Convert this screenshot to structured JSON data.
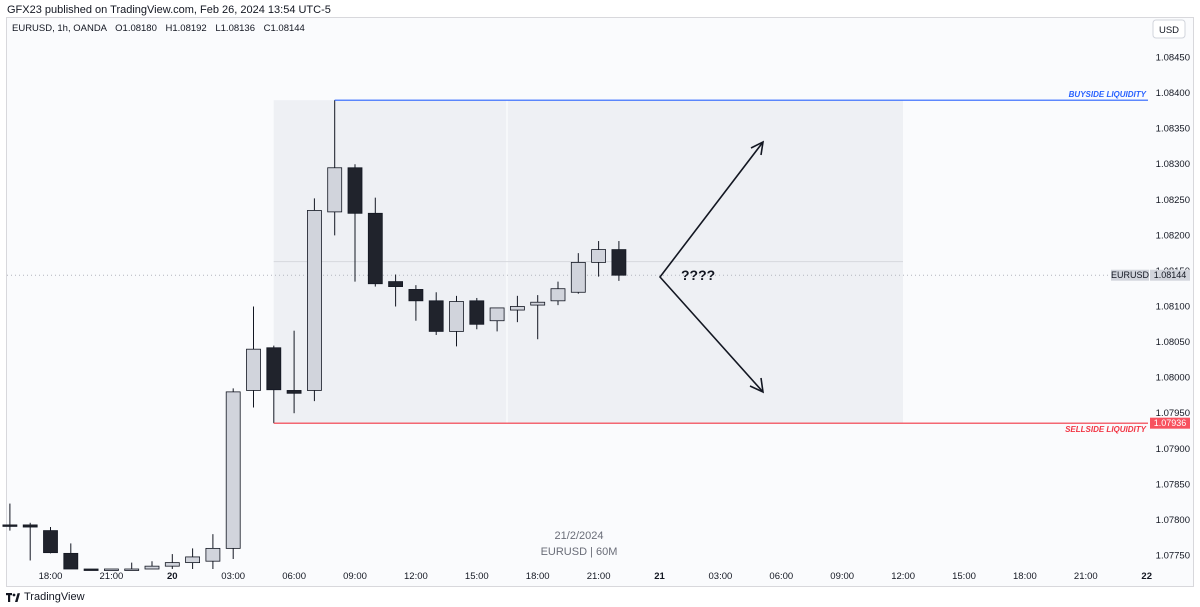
{
  "header": {
    "published_text": "GFX23 published on TradingView.com, Feb 26, 2024 13:54 UTC-5"
  },
  "footer": {
    "brand": "TradingView",
    "logo_icon": "tradingview-logo-icon"
  },
  "colors": {
    "bull_body": "#d1d4dc",
    "bear_body": "#20232c",
    "wick": "#131722",
    "buyside_line": "#2962ff",
    "sellside_line": "#f23645",
    "zone_fill": "#eef0f4",
    "sell_label_bg": "#f7525f"
  },
  "chart_data": {
    "type": "candlestick",
    "legend": {
      "symbol": "EURUSD, 1h, OANDA",
      "open": "O1.08180",
      "high": "H1.08192",
      "low": "L1.08136",
      "close": "C1.08144"
    },
    "currency": "USD",
    "ylim": [
      1.07705,
      1.08495
    ],
    "y_ticks": [
      "1.08450",
      "1.08400",
      "1.08350",
      "1.08300",
      "1.08250",
      "1.08200",
      "1.08150",
      "1.08100",
      "1.08050",
      "1.08000",
      "1.07950",
      "1.07900",
      "1.07850",
      "1.07800",
      "1.07750"
    ],
    "x_ticks": [
      "18:00",
      "21:00",
      "20",
      "03:00",
      "06:00",
      "09:00",
      "12:00",
      "15:00",
      "18:00",
      "21:00",
      "21",
      "03:00",
      "06:00",
      "09:00",
      "12:00",
      "15:00",
      "18:00",
      "21:00",
      "22"
    ],
    "bold_x_ticks": [
      "20",
      "21",
      "22"
    ],
    "watermark": {
      "date": "21/2/2024",
      "symbol": "EURUSD | 60M"
    },
    "candles": [
      {
        "o": 1.07793,
        "h": 1.07823,
        "l": 1.07785,
        "c": 1.07792
      },
      {
        "o": 1.07793,
        "h": 1.07796,
        "l": 1.07743,
        "c": 1.0779
      },
      {
        "o": 1.07785,
        "h": 1.0779,
        "l": 1.07753,
        "c": 1.07754
      },
      {
        "o": 1.07753,
        "h": 1.07767,
        "l": 1.077,
        "c": 1.0772
      },
      {
        "o": 1.0772,
        "h": 1.07726,
        "l": 1.07705,
        "c": 1.07712
      },
      {
        "o": 1.07712,
        "h": 1.0773,
        "l": 1.07705,
        "c": 1.0772
      },
      {
        "o": 1.0772,
        "h": 1.0774,
        "l": 1.07705,
        "c": 1.0773
      },
      {
        "o": 1.0773,
        "h": 1.07742,
        "l": 1.07705,
        "c": 1.07735
      },
      {
        "o": 1.07735,
        "h": 1.07752,
        "l": 1.07715,
        "c": 1.0774
      },
      {
        "o": 1.0774,
        "h": 1.0776,
        "l": 1.0773,
        "c": 1.07748
      },
      {
        "o": 1.07742,
        "h": 1.0778,
        "l": 1.0773,
        "c": 1.0776
      },
      {
        "o": 1.0776,
        "h": 1.07985,
        "l": 1.07745,
        "c": 1.0798
      },
      {
        "o": 1.07982,
        "h": 1.081,
        "l": 1.07958,
        "c": 1.0804
      },
      {
        "o": 1.08042,
        "h": 1.08045,
        "l": 1.07936,
        "c": 1.07983
      },
      {
        "o": 1.07982,
        "h": 1.08066,
        "l": 1.0795,
        "c": 1.07978
      },
      {
        "o": 1.07982,
        "h": 1.08252,
        "l": 1.07967,
        "c": 1.08235
      },
      {
        "o": 1.08233,
        "h": 1.0839,
        "l": 1.082,
        "c": 1.08295
      },
      {
        "o": 1.08295,
        "h": 1.083,
        "l": 1.08135,
        "c": 1.08231
      },
      {
        "o": 1.08231,
        "h": 1.08253,
        "l": 1.08128,
        "c": 1.08132
      },
      {
        "o": 1.08135,
        "h": 1.08145,
        "l": 1.081,
        "c": 1.08128
      },
      {
        "o": 1.08124,
        "h": 1.0813,
        "l": 1.0808,
        "c": 1.08108
      },
      {
        "o": 1.08108,
        "h": 1.0812,
        "l": 1.0806,
        "c": 1.08065
      },
      {
        "o": 1.08065,
        "h": 1.08115,
        "l": 1.08044,
        "c": 1.08107
      },
      {
        "o": 1.08108,
        "h": 1.08112,
        "l": 1.08068,
        "c": 1.08075
      },
      {
        "o": 1.0808,
        "h": 1.08098,
        "l": 1.08065,
        "c": 1.08098
      },
      {
        "o": 1.08095,
        "h": 1.08115,
        "l": 1.08078,
        "c": 1.081
      },
      {
        "o": 1.08102,
        "h": 1.08116,
        "l": 1.08054,
        "c": 1.08106
      },
      {
        "o": 1.08108,
        "h": 1.08135,
        "l": 1.08102,
        "c": 1.08125
      },
      {
        "o": 1.0812,
        "h": 1.08175,
        "l": 1.08118,
        "c": 1.08162
      },
      {
        "o": 1.08162,
        "h": 1.08192,
        "l": 1.08142,
        "c": 1.0818
      },
      {
        "o": 1.0818,
        "h": 1.08192,
        "l": 1.08136,
        "c": 1.08144
      }
    ],
    "annotations": {
      "buyside": {
        "label": "BUYSIDE LIQUIDITY",
        "price": 1.0839
      },
      "sellside": {
        "label": "SELLSIDE LIQUIDITY",
        "price": 1.07936,
        "price_label": "1.07936"
      },
      "current_price": {
        "symbol": "EURUSD",
        "price_label": "1.08144",
        "price": 1.08144
      },
      "question": "????",
      "zone": {
        "top": 1.0839,
        "bottom": 1.07936,
        "mid": 1.08163
      }
    }
  }
}
